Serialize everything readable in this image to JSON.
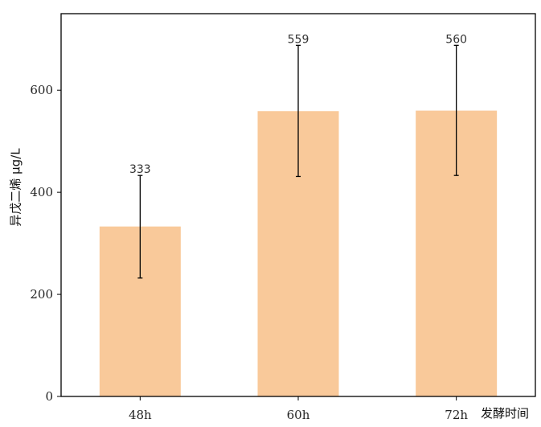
{
  "chart_data": {
    "type": "bar",
    "categories": [
      "48h",
      "60h",
      "72h"
    ],
    "values": [
      333,
      559,
      560
    ],
    "error_bars": [
      {
        "low": 232,
        "high": 433
      },
      {
        "low": 431,
        "high": 688
      },
      {
        "low": 433,
        "high": 688
      }
    ],
    "data_labels": [
      "333",
      "559",
      "560"
    ],
    "title": "",
    "xlabel": "发酵时间",
    "ylabel": "异戊二烯 μg/L",
    "ylim": [
      0,
      750
    ],
    "yticks": [
      0,
      200,
      400,
      600
    ],
    "grid": false,
    "colors": {
      "bar": "#F9C99A",
      "error": "#000000",
      "frame": "#000000"
    }
  }
}
